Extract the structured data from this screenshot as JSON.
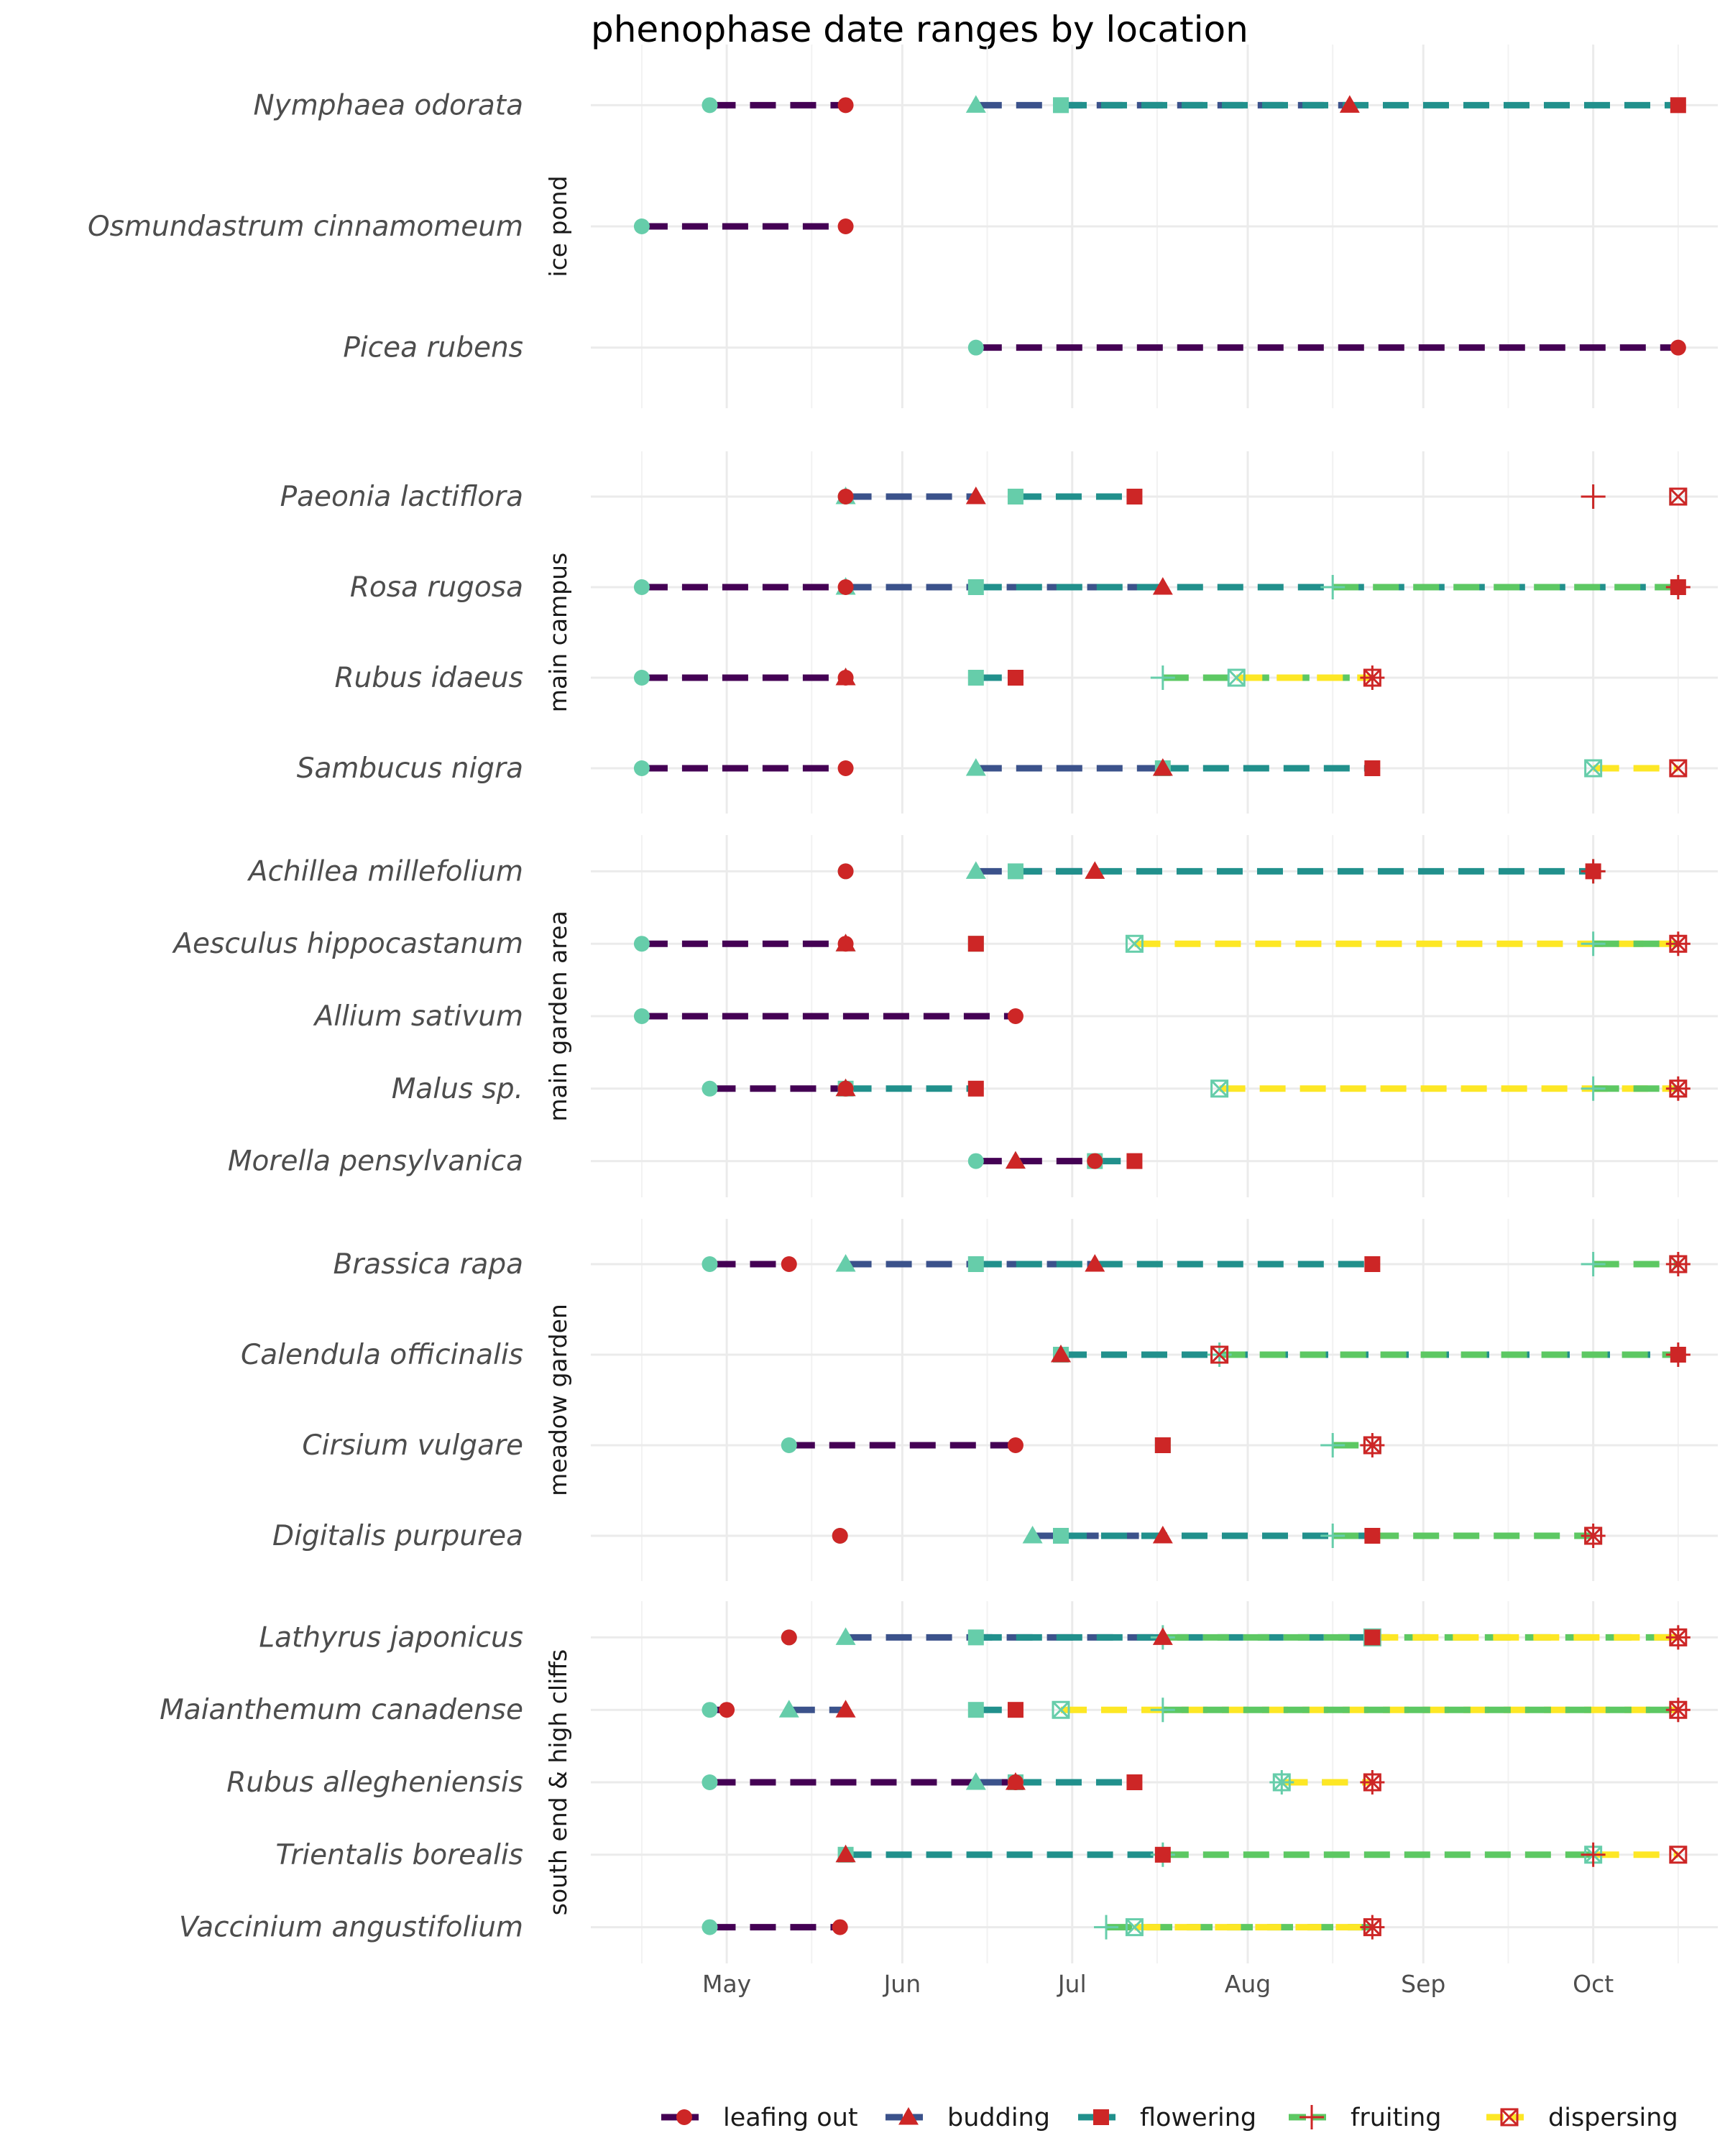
{
  "chart_data": {
    "type": "dumbbell-range",
    "title": "phenophase date ranges by location",
    "x_axis": {
      "min": "2021-04-07",
      "max": "2021-10-23",
      "ticks": [
        {
          "label": "May",
          "date": "2021-05-01"
        },
        {
          "label": "Jun",
          "date": "2021-06-01"
        },
        {
          "label": "Jul",
          "date": "2021-07-01"
        },
        {
          "label": "Aug",
          "date": "2021-08-01"
        },
        {
          "label": "Sep",
          "date": "2021-09-01"
        },
        {
          "label": "Oct",
          "date": "2021-10-01"
        }
      ]
    },
    "phases": [
      {
        "name": "leafing out",
        "color": "#440154",
        "shape": "circle"
      },
      {
        "name": "budding",
        "color": "#3b528b",
        "shape": "triangle"
      },
      {
        "name": "flowering",
        "color": "#21908c",
        "shape": "square"
      },
      {
        "name": "fruiting",
        "color": "#5dc863",
        "shape": "plus"
      },
      {
        "name": "dispersing",
        "color": "#fde725",
        "shape": "boxcross"
      }
    ],
    "start_color": "#66cdaa",
    "end_color": "#cd2626",
    "grid": true,
    "legend_position": "bottom",
    "panels": [
      {
        "location": "ice pond",
        "species": [
          {
            "name": "Nymphaea odorata",
            "ranges": [
              {
                "phase": "leafing out",
                "start": "2021-04-28",
                "end": "2021-05-22"
              },
              {
                "phase": "budding",
                "start": "2021-06-14",
                "end": "2021-08-19"
              },
              {
                "phase": "flowering",
                "start": "2021-06-29",
                "end": "2021-10-16"
              }
            ]
          },
          {
            "name": "Osmundastrum cinnamomeum",
            "ranges": [
              {
                "phase": "leafing out",
                "start": "2021-04-16",
                "end": "2021-05-22"
              }
            ]
          },
          {
            "name": "Picea rubens",
            "ranges": [
              {
                "phase": "leafing out",
                "start": "2021-06-14",
                "end": "2021-10-16"
              }
            ]
          }
        ]
      },
      {
        "location": "main campus",
        "species": [
          {
            "name": "Paeonia lactiflora",
            "ranges": [
              {
                "phase": "leafing out",
                "start": "2021-05-22",
                "end": "2021-05-22"
              },
              {
                "phase": "budding",
                "start": "2021-05-22",
                "end": "2021-06-14"
              },
              {
                "phase": "flowering",
                "start": "2021-06-21",
                "end": "2021-07-12"
              },
              {
                "phase": "fruiting",
                "start": "2021-10-01",
                "end": "2021-10-01"
              },
              {
                "phase": "dispersing",
                "start": "2021-10-16",
                "end": "2021-10-16"
              }
            ]
          },
          {
            "name": "Rosa rugosa",
            "ranges": [
              {
                "phase": "leafing out",
                "start": "2021-04-16",
                "end": "2021-05-22"
              },
              {
                "phase": "budding",
                "start": "2021-05-22",
                "end": "2021-07-17"
              },
              {
                "phase": "flowering",
                "start": "2021-06-14",
                "end": "2021-10-16"
              },
              {
                "phase": "fruiting",
                "start": "2021-08-16",
                "end": "2021-10-16"
              }
            ]
          },
          {
            "name": "Rubus idaeus",
            "ranges": [
              {
                "phase": "leafing out",
                "start": "2021-04-16",
                "end": "2021-05-22"
              },
              {
                "phase": "budding",
                "start": "2021-05-22",
                "end": "2021-05-22"
              },
              {
                "phase": "flowering",
                "start": "2021-06-14",
                "end": "2021-06-21"
              },
              {
                "phase": "fruiting",
                "start": "2021-07-17",
                "end": "2021-08-23"
              },
              {
                "phase": "dispersing",
                "start": "2021-07-30",
                "end": "2021-08-23"
              }
            ]
          },
          {
            "name": "Sambucus nigra",
            "ranges": [
              {
                "phase": "leafing out",
                "start": "2021-04-16",
                "end": "2021-05-22"
              },
              {
                "phase": "budding",
                "start": "2021-06-14",
                "end": "2021-07-17"
              },
              {
                "phase": "flowering",
                "start": "2021-07-17",
                "end": "2021-08-23"
              },
              {
                "phase": "dispersing",
                "start": "2021-10-01",
                "end": "2021-10-16"
              }
            ]
          }
        ]
      },
      {
        "location": "main garden area",
        "species": [
          {
            "name": "Achillea millefolium",
            "ranges": [
              {
                "phase": "leafing out",
                "start": "2021-05-22",
                "end": "2021-05-22"
              },
              {
                "phase": "budding",
                "start": "2021-06-14",
                "end": "2021-07-05"
              },
              {
                "phase": "flowering",
                "start": "2021-06-21",
                "end": "2021-10-01"
              },
              {
                "phase": "fruiting",
                "start": "2021-10-01",
                "end": "2021-10-01"
              }
            ]
          },
          {
            "name": "Aesculus hippocastanum",
            "ranges": [
              {
                "phase": "leafing out",
                "start": "2021-04-16",
                "end": "2021-05-22"
              },
              {
                "phase": "budding",
                "start": "2021-05-22",
                "end": "2021-05-22"
              },
              {
                "phase": "flowering",
                "start": "2021-06-14",
                "end": "2021-06-14"
              },
              {
                "phase": "dispersing",
                "start": "2021-07-12",
                "end": "2021-10-16"
              },
              {
                "phase": "fruiting",
                "start": "2021-10-01",
                "end": "2021-10-16"
              }
            ]
          },
          {
            "name": "Allium sativum",
            "ranges": [
              {
                "phase": "leafing out",
                "start": "2021-04-16",
                "end": "2021-06-21"
              }
            ]
          },
          {
            "name": "Malus sp.",
            "ranges": [
              {
                "phase": "leafing out",
                "start": "2021-04-28",
                "end": "2021-05-22"
              },
              {
                "phase": "budding",
                "start": "2021-05-22",
                "end": "2021-05-22"
              },
              {
                "phase": "flowering",
                "start": "2021-05-22",
                "end": "2021-06-14"
              },
              {
                "phase": "dispersing",
                "start": "2021-07-27",
                "end": "2021-10-16"
              },
              {
                "phase": "fruiting",
                "start": "2021-10-01",
                "end": "2021-10-16"
              }
            ]
          },
          {
            "name": "Morella pensylvanica",
            "ranges": [
              {
                "phase": "leafing out",
                "start": "2021-06-14",
                "end": "2021-07-05"
              },
              {
                "phase": "budding",
                "start": "2021-06-21",
                "end": "2021-06-21"
              },
              {
                "phase": "flowering",
                "start": "2021-07-05",
                "end": "2021-07-12"
              }
            ]
          }
        ]
      },
      {
        "location": "meadow garden",
        "species": [
          {
            "name": "Brassica rapa",
            "ranges": [
              {
                "phase": "leafing out",
                "start": "2021-04-28",
                "end": "2021-05-12"
              },
              {
                "phase": "budding",
                "start": "2021-05-22",
                "end": "2021-07-05"
              },
              {
                "phase": "flowering",
                "start": "2021-06-14",
                "end": "2021-08-23"
              },
              {
                "phase": "fruiting",
                "start": "2021-10-01",
                "end": "2021-10-16"
              },
              {
                "phase": "dispersing",
                "start": "2021-10-16",
                "end": "2021-10-16"
              }
            ]
          },
          {
            "name": "Calendula officinalis",
            "ranges": [
              {
                "phase": "budding",
                "start": "2021-06-29",
                "end": "2021-06-29"
              },
              {
                "phase": "flowering",
                "start": "2021-06-29",
                "end": "2021-10-16"
              },
              {
                "phase": "fruiting",
                "start": "2021-07-27",
                "end": "2021-10-16"
              },
              {
                "phase": "dispersing",
                "start": "2021-07-27",
                "end": "2021-07-27"
              }
            ]
          },
          {
            "name": "Cirsium vulgare",
            "ranges": [
              {
                "phase": "leafing out",
                "start": "2021-05-12",
                "end": "2021-06-21"
              },
              {
                "phase": "flowering",
                "start": "2021-07-17",
                "end": "2021-07-17"
              },
              {
                "phase": "fruiting",
                "start": "2021-08-16",
                "end": "2021-08-23"
              },
              {
                "phase": "dispersing",
                "start": "2021-08-23",
                "end": "2021-08-23"
              }
            ]
          },
          {
            "name": "Digitalis purpurea",
            "ranges": [
              {
                "phase": "leafing out",
                "start": "2021-05-21",
                "end": "2021-05-21"
              },
              {
                "phase": "budding",
                "start": "2021-06-24",
                "end": "2021-07-17"
              },
              {
                "phase": "flowering",
                "start": "2021-06-29",
                "end": "2021-08-23"
              },
              {
                "phase": "fruiting",
                "start": "2021-08-16",
                "end": "2021-10-01"
              },
              {
                "phase": "dispersing",
                "start": "2021-10-01",
                "end": "2021-10-01"
              }
            ]
          }
        ]
      },
      {
        "location": "south end & high cliffs",
        "species": [
          {
            "name": "Lathyrus japonicus",
            "ranges": [
              {
                "phase": "leafing out",
                "start": "2021-05-12",
                "end": "2021-05-12"
              },
              {
                "phase": "budding",
                "start": "2021-05-22",
                "end": "2021-07-17"
              },
              {
                "phase": "flowering",
                "start": "2021-06-14",
                "end": "2021-08-23"
              },
              {
                "phase": "fruiting",
                "start": "2021-07-17",
                "end": "2021-10-16"
              },
              {
                "phase": "dispersing",
                "start": "2021-08-23",
                "end": "2021-10-16"
              }
            ]
          },
          {
            "name": "Maianthemum canadense",
            "ranges": [
              {
                "phase": "leafing out",
                "start": "2021-04-28",
                "end": "2021-05-01"
              },
              {
                "phase": "budding",
                "start": "2021-05-12",
                "end": "2021-05-22"
              },
              {
                "phase": "flowering",
                "start": "2021-06-14",
                "end": "2021-06-21"
              },
              {
                "phase": "dispersing",
                "start": "2021-06-29",
                "end": "2021-10-16"
              },
              {
                "phase": "fruiting",
                "start": "2021-07-17",
                "end": "2021-10-16"
              }
            ]
          },
          {
            "name": "Rubus allegheniensis",
            "ranges": [
              {
                "phase": "leafing out",
                "start": "2021-04-28",
                "end": "2021-06-21"
              },
              {
                "phase": "budding",
                "start": "2021-06-14",
                "end": "2021-06-21"
              },
              {
                "phase": "flowering",
                "start": "2021-06-21",
                "end": "2021-07-12"
              },
              {
                "phase": "fruiting",
                "start": "2021-08-07",
                "end": "2021-08-23"
              },
              {
                "phase": "dispersing",
                "start": "2021-08-07",
                "end": "2021-08-23"
              }
            ]
          },
          {
            "name": "Trientalis borealis",
            "ranges": [
              {
                "phase": "budding",
                "start": "2021-05-22",
                "end": "2021-05-22"
              },
              {
                "phase": "flowering",
                "start": "2021-05-22",
                "end": "2021-07-17"
              },
              {
                "phase": "fruiting",
                "start": "2021-07-17",
                "end": "2021-10-01"
              },
              {
                "phase": "dispersing",
                "start": "2021-10-01",
                "end": "2021-10-16"
              }
            ]
          },
          {
            "name": "Vaccinium angustifolium",
            "ranges": [
              {
                "phase": "leafing out",
                "start": "2021-04-28",
                "end": "2021-05-21"
              },
              {
                "phase": "fruiting",
                "start": "2021-07-07",
                "end": "2021-08-23"
              },
              {
                "phase": "dispersing",
                "start": "2021-07-12",
                "end": "2021-08-23"
              }
            ]
          }
        ]
      }
    ]
  }
}
